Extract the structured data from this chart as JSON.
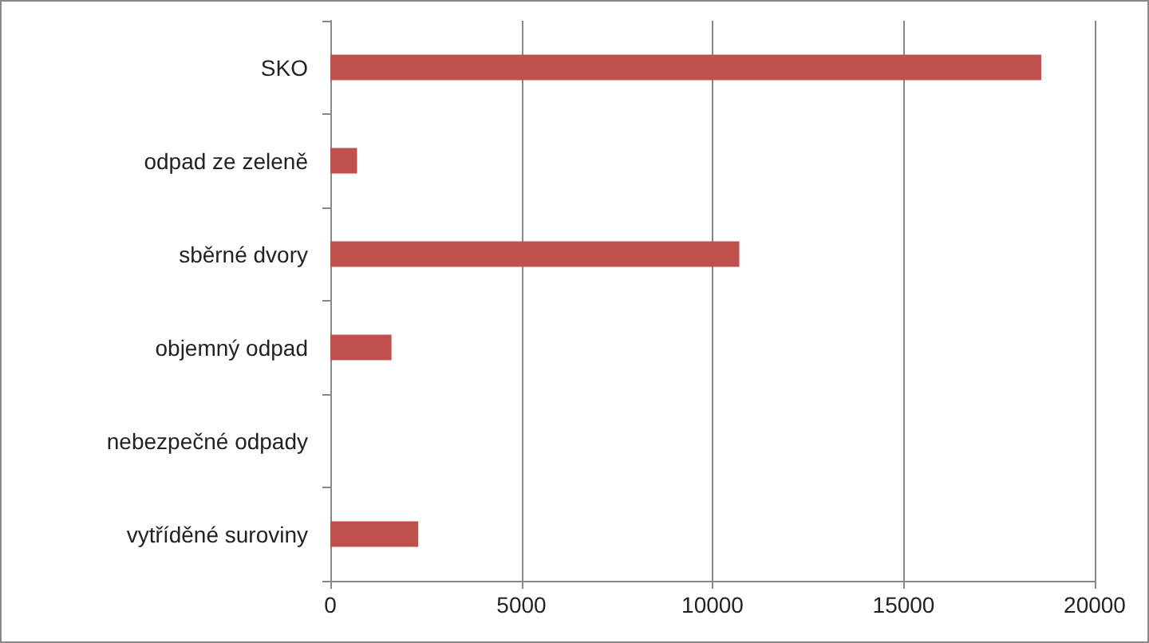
{
  "chart_data": {
    "type": "bar",
    "orientation": "horizontal",
    "categories": [
      "SKO",
      "odpad ze zeleně",
      "sběrné dvory",
      "objemný odpad",
      "nebezpečné odpady",
      "vytříděné suroviny"
    ],
    "values": [
      18600,
      700,
      10700,
      1600,
      0,
      2300
    ],
    "color": "#c0504d",
    "xlim": [
      0,
      20000
    ],
    "xticks": [
      0,
      5000,
      10000,
      15000,
      20000
    ],
    "grid": "x"
  }
}
